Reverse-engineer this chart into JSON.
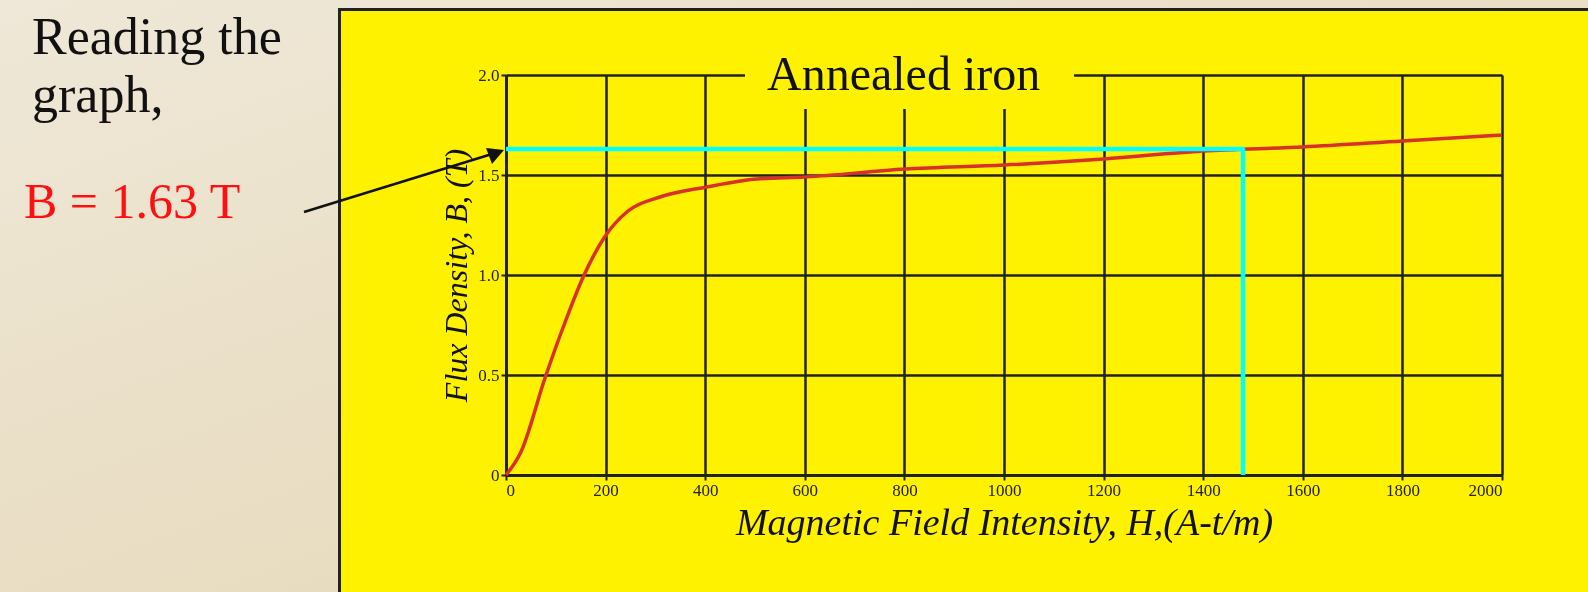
{
  "chart_data": {
    "type": "line",
    "title": "Annealed iron",
    "xlabel": "Magnetic Field Intensity, H,(A-t/m)",
    "ylabel": "Flux Density, B, (T)",
    "annotations": [
      "Reading the graph,",
      "B = 1.63 T"
    ],
    "series": [
      {
        "color": "#d8302a",
        "x": [
          0,
          29,
          79,
          115,
          155,
          198,
          245,
          309,
          403,
          504,
          601,
          802,
          1000,
          1200,
          1400,
          1600,
          1800,
          2000
        ],
        "values": [
          0,
          0.11,
          0.49,
          0.74,
          0.99,
          1.19,
          1.32,
          1.39,
          1.44,
          1.48,
          1.49,
          1.53,
          1.55,
          1.58,
          1.62,
          1.64,
          1.67,
          1.7
        ]
      },
      {
        "color": "#00ffff",
        "x": [
          0,
          1480,
          1480
        ],
        "values": [
          1.63,
          1.63,
          0
        ]
      }
    ],
    "xlim": [
      0,
      2000
    ],
    "ylim": [
      0,
      2
    ],
    "xticks": [
      0,
      200,
      400,
      600,
      800,
      1000,
      1200,
      1400,
      1600,
      1800,
      2000
    ],
    "yticks": [
      0,
      0.5,
      {
        "value": 1,
        "label": "1.0"
      },
      1.5,
      {
        "value": 2,
        "label": "2.0"
      }
    ],
    "grid": true,
    "marker": "none",
    "line_style": "solid"
  }
}
